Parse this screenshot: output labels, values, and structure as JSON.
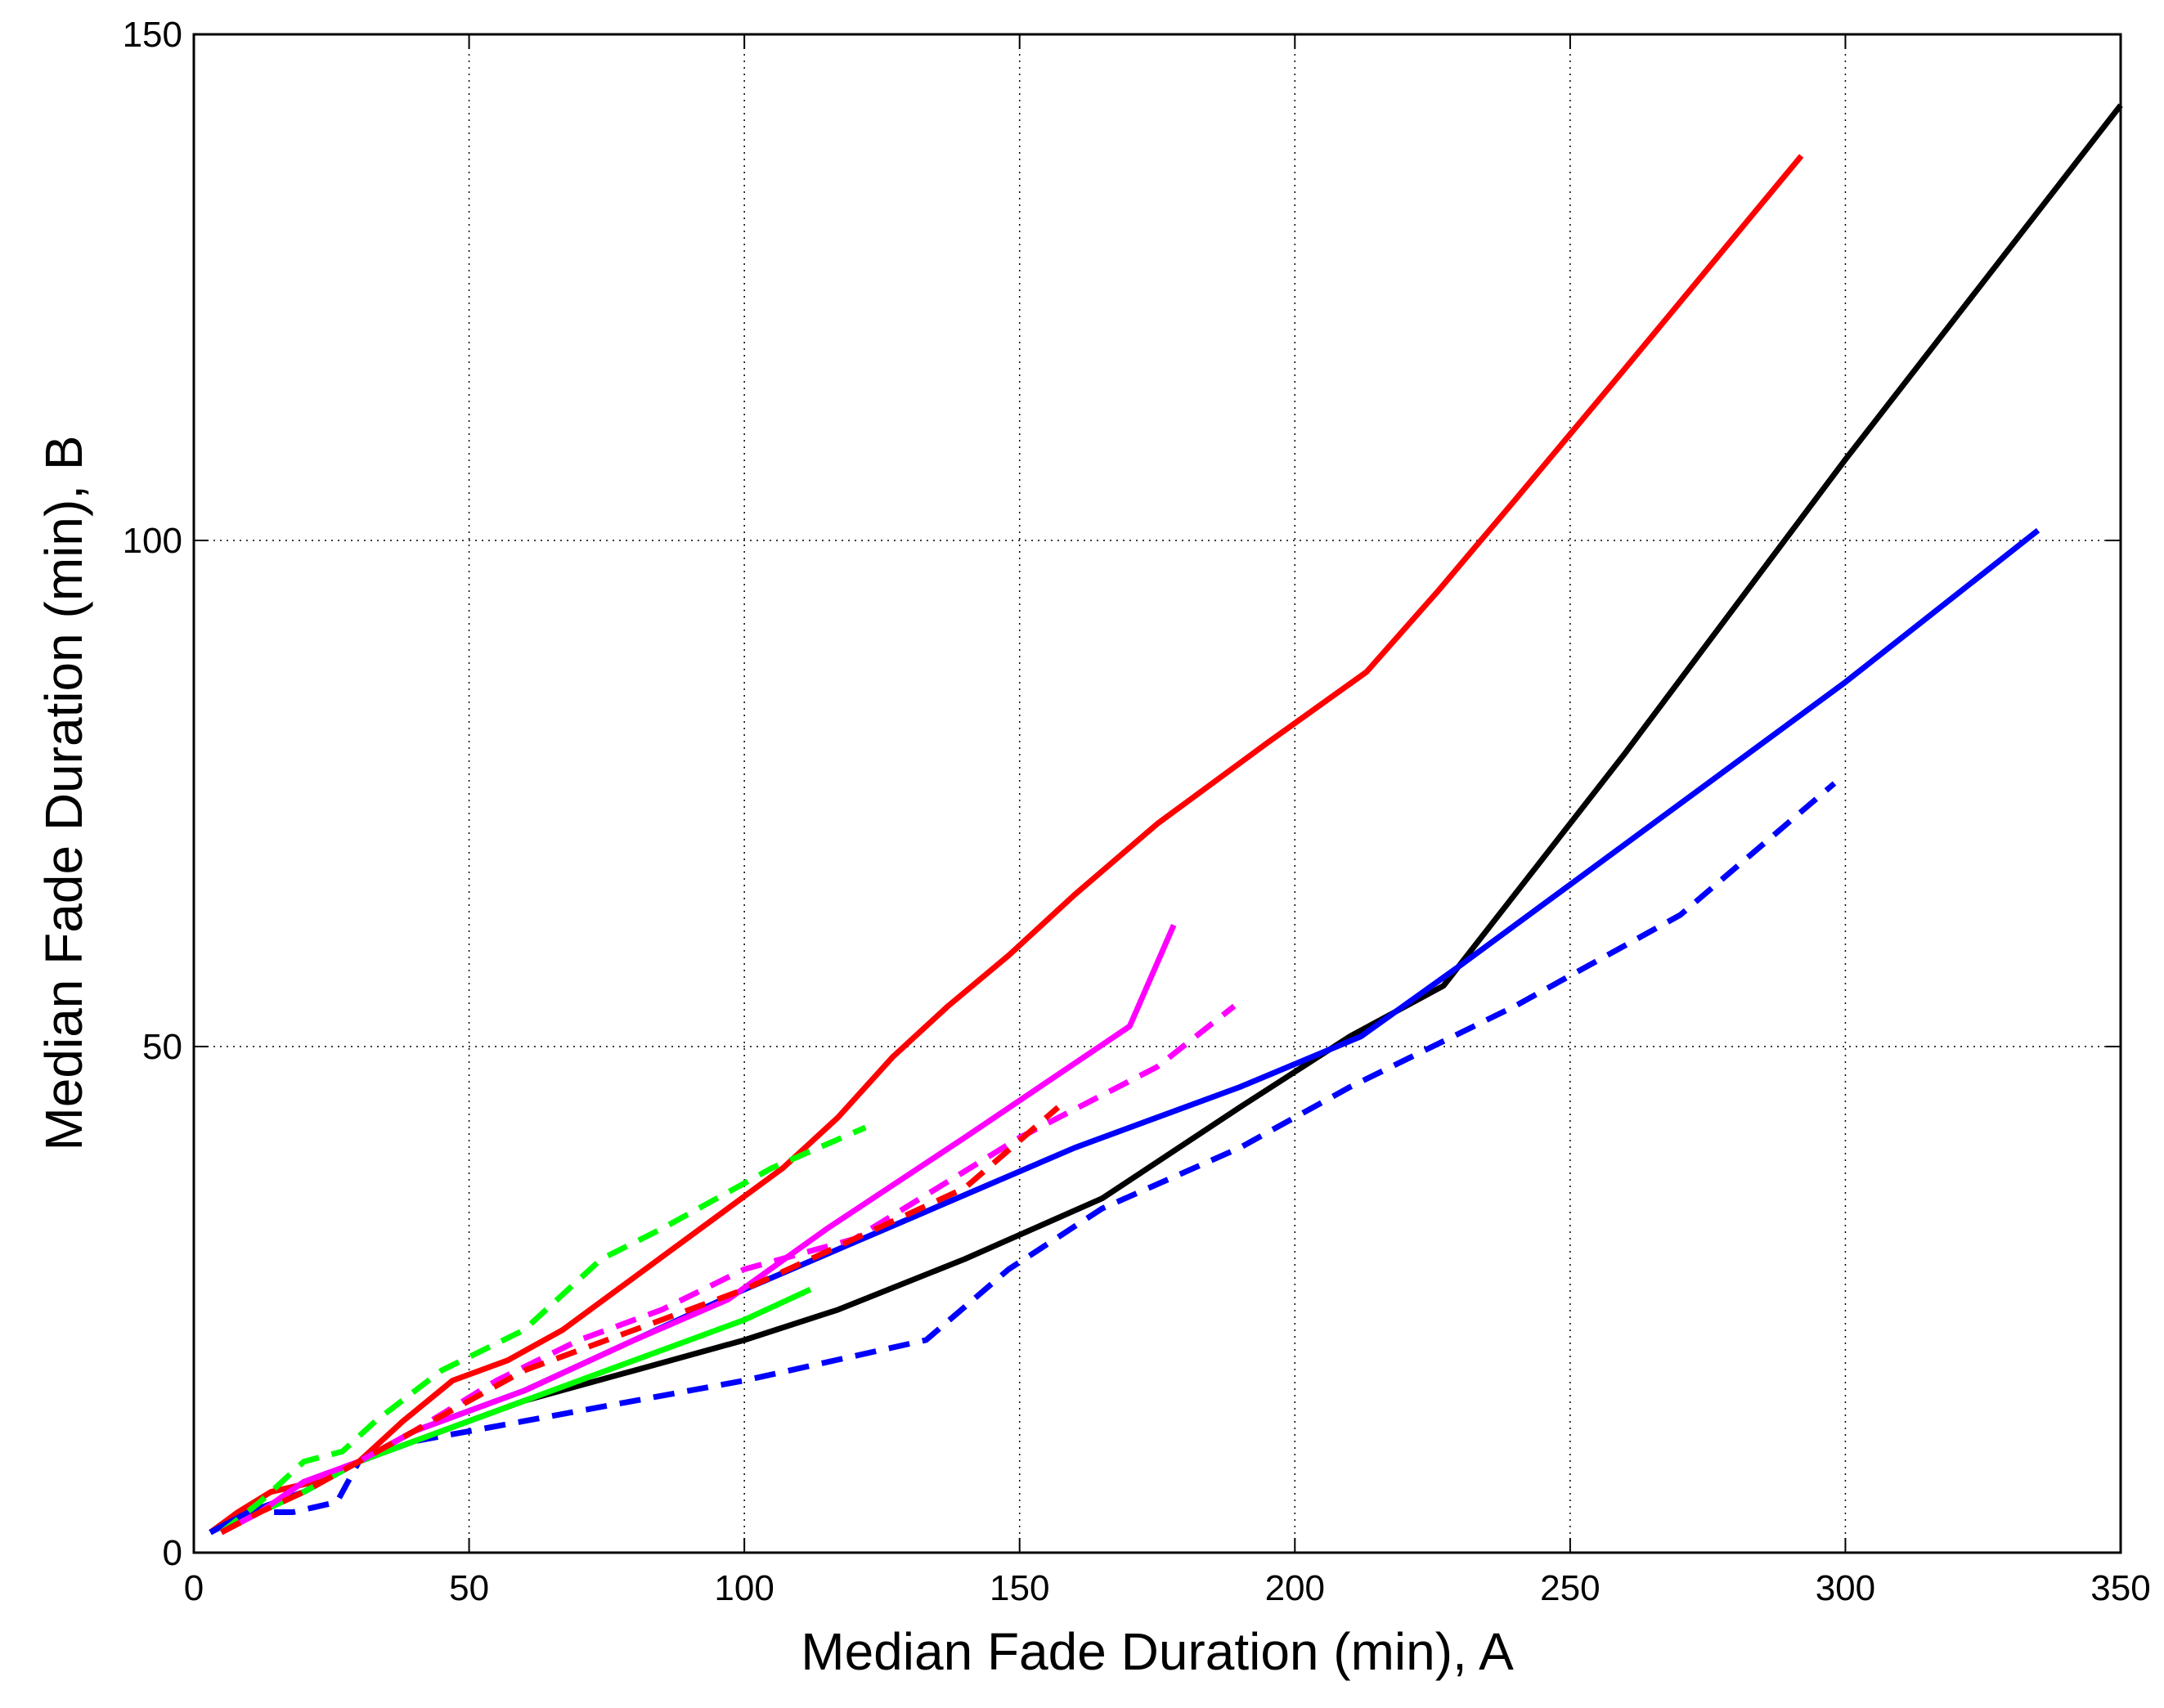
{
  "chart_data": {
    "type": "line",
    "title": "",
    "xlabel": "Median Fade Duration (min), A",
    "ylabel": "Median Fade Duration (min), B",
    "xlim": [
      0,
      350
    ],
    "ylim": [
      0,
      150
    ],
    "xticks": [
      0,
      50,
      100,
      150,
      200,
      250,
      300,
      350
    ],
    "yticks": [
      0,
      50,
      100,
      150
    ],
    "xtick_labels": [
      "0",
      "50",
      "100",
      "150",
      "200",
      "250",
      "300",
      "350"
    ],
    "ytick_labels": [
      "0",
      "50",
      "100",
      "150"
    ],
    "grid": true,
    "legend": "none",
    "series": [
      {
        "color": "#ff0000",
        "dash": "solid",
        "x": [
          3,
          8,
          14,
          22,
          30,
          38,
          47,
          57,
          67,
          77,
          87,
          97,
          107,
          117,
          127,
          137,
          148,
          160,
          175,
          195,
          213,
          226,
          240,
          260,
          292
        ],
        "y": [
          2,
          4,
          6,
          7,
          9,
          13,
          17,
          19,
          22,
          26,
          30,
          34,
          38,
          43,
          49,
          54,
          59,
          65,
          72,
          80,
          87,
          95,
          104,
          117,
          138
        ]
      },
      {
        "color": "#000000",
        "dash": "solid",
        "x": [
          3,
          10,
          20,
          30,
          40,
          60,
          80,
          100,
          117,
          140,
          165,
          190,
          210,
          227,
          260,
          300,
          350
        ],
        "y": [
          2,
          4,
          6,
          9,
          11,
          15,
          18,
          21,
          24,
          29,
          35,
          44,
          51,
          56,
          79,
          108,
          143
        ]
      },
      {
        "color": "#0000ff",
        "dash": "solid",
        "x": [
          3,
          10,
          20,
          30,
          40,
          60,
          80,
          100,
          130,
          160,
          190,
          212,
          230,
          260,
          300,
          335
        ],
        "y": [
          2,
          4,
          6,
          9,
          12,
          16,
          21,
          26,
          33,
          40,
          46,
          51,
          58,
          70,
          86,
          101
        ]
      },
      {
        "color": "#0000ff",
        "dash": "dashed",
        "x": [
          3,
          10,
          18,
          26,
          30,
          40,
          60,
          80,
          100,
          133,
          148,
          165,
          190,
          210,
          240,
          270,
          298
        ],
        "y": [
          2,
          4,
          4,
          5,
          9,
          11,
          13,
          15,
          17,
          21,
          28,
          34,
          40,
          46,
          54,
          63,
          76
        ]
      },
      {
        "color": "#00ff00",
        "dash": "solid",
        "x": [
          5,
          12,
          20,
          30,
          40,
          60,
          80,
          100,
          112
        ],
        "y": [
          2,
          4,
          6,
          9,
          11,
          15,
          19,
          23,
          26
        ]
      },
      {
        "color": "#00ff00",
        "dash": "dashed",
        "x": [
          5,
          12,
          20,
          27,
          33,
          45,
          60,
          74,
          85,
          105,
          122
        ],
        "y": [
          2,
          5,
          9,
          10,
          13,
          18,
          22,
          29,
          32,
          38,
          42
        ]
      },
      {
        "color": "#ff00ff",
        "dash": "solid",
        "x": [
          5,
          12,
          20,
          30,
          40,
          60,
          80,
          97,
          115,
          140,
          170,
          178
        ],
        "y": [
          2,
          4,
          7,
          9,
          12,
          16,
          21,
          25,
          32,
          41,
          52,
          62
        ]
      },
      {
        "color": "#ff00ff",
        "dash": "dashed",
        "x": [
          5,
          12,
          20,
          30,
          40,
          55,
          70,
          85,
          100,
          120,
          150,
          175,
          189
        ],
        "y": [
          2,
          4,
          7,
          9,
          12,
          17,
          21,
          24,
          28,
          31,
          41,
          48,
          54
        ]
      },
      {
        "color": "#ff0000",
        "dash": "dashed",
        "x": [
          5,
          12,
          20,
          30,
          40,
          60,
          80,
          100,
          120,
          140,
          157
        ],
        "y": [
          2,
          4,
          6,
          9,
          12,
          18,
          22,
          26,
          31,
          36,
          44
        ]
      }
    ]
  }
}
